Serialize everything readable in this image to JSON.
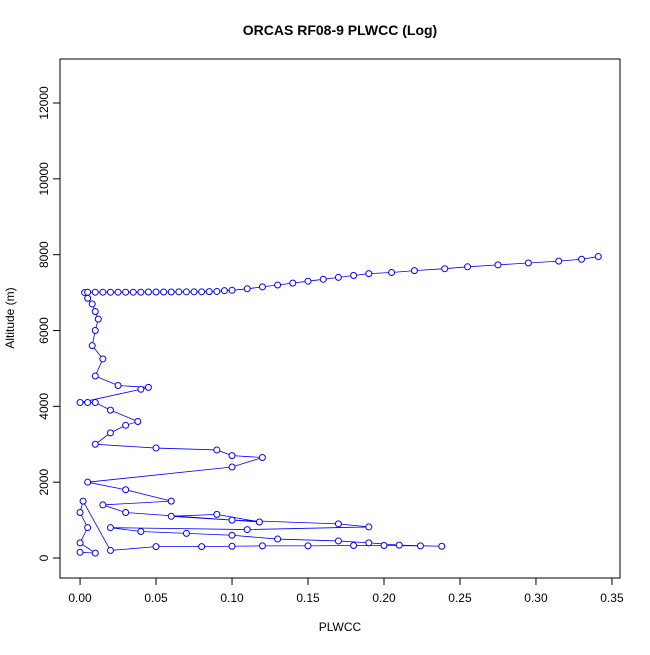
{
  "chart_data": {
    "type": "line",
    "title": "ORCAS RF08-9 PLWCC (Log)",
    "xlabel": "PLWCC",
    "ylabel": "Altitude (m)",
    "color": "#0000ff",
    "xlim": [
      -0.0132,
      0.3553
    ],
    "ylim": [
      -527,
      13160
    ],
    "xticks": [
      {
        "value": 0,
        "label": "0.00"
      },
      0.05,
      {
        "value": 0.1,
        "label": "0.10"
      },
      0.15,
      {
        "value": 0.2,
        "label": "0.20"
      },
      0.25,
      {
        "value": 0.3,
        "label": "0.30"
      },
      0.35
    ],
    "yticks": [
      0,
      2000,
      4000,
      6000,
      8000,
      10000,
      12000
    ],
    "x": [
      0.0,
      0.01,
      0.0,
      0.005,
      0.0,
      0.002,
      0.02,
      0.05,
      0.08,
      0.1,
      0.12,
      0.15,
      0.18,
      0.2,
      0.224,
      0.238,
      0.21,
      0.19,
      0.17,
      0.13,
      0.1,
      0.07,
      0.04,
      0.02,
      0.11,
      0.19,
      0.17,
      0.1,
      0.06,
      0.09,
      0.118,
      0.03,
      0.015,
      0.06,
      0.03,
      0.005,
      0.1,
      0.12,
      0.1,
      0.09,
      0.05,
      0.01,
      0.02,
      0.03,
      0.038,
      0.02,
      0.01,
      0.005,
      0.0,
      0.04,
      0.045,
      0.025,
      0.01,
      0.015,
      0.008,
      0.01,
      0.012,
      0.01,
      0.008,
      0.005,
      0.003,
      0.005,
      0.01,
      0.015,
      0.02,
      0.025,
      0.03,
      0.035,
      0.04,
      0.045,
      0.05,
      0.055,
      0.06,
      0.065,
      0.07,
      0.075,
      0.08,
      0.085,
      0.09,
      0.095,
      0.1,
      0.11,
      0.12,
      0.13,
      0.14,
      0.15,
      0.16,
      0.17,
      0.18,
      0.19,
      0.205,
      0.22,
      0.24,
      0.255,
      0.275,
      0.295,
      0.315,
      0.33,
      0.341
    ],
    "values": [
      150,
      130,
      400,
      800,
      1200,
      1500,
      200,
      300,
      300,
      310,
      320,
      320,
      330,
      330,
      320,
      310,
      340,
      400,
      450,
      500,
      600,
      650,
      700,
      800,
      750,
      820,
      900,
      1000,
      1100,
      1150,
      950,
      1200,
      1400,
      1500,
      1800,
      2000,
      2400,
      2650,
      2700,
      2850,
      2900,
      3000,
      3300,
      3500,
      3600,
      3900,
      4100,
      4100,
      4100,
      4450,
      4500,
      4550,
      4800,
      5250,
      5600,
      6000,
      6300,
      6500,
      6700,
      6850,
      7000,
      7010,
      7010,
      7010,
      7010,
      7010,
      7010,
      7010,
      7010,
      7015,
      7015,
      7015,
      7015,
      7020,
      7020,
      7020,
      7020,
      7025,
      7030,
      7050,
      7060,
      7100,
      7150,
      7200,
      7250,
      7300,
      7350,
      7400,
      7450,
      7500,
      7530,
      7580,
      7630,
      7680,
      7730,
      7780,
      7830,
      7880,
      7950
    ]
  }
}
